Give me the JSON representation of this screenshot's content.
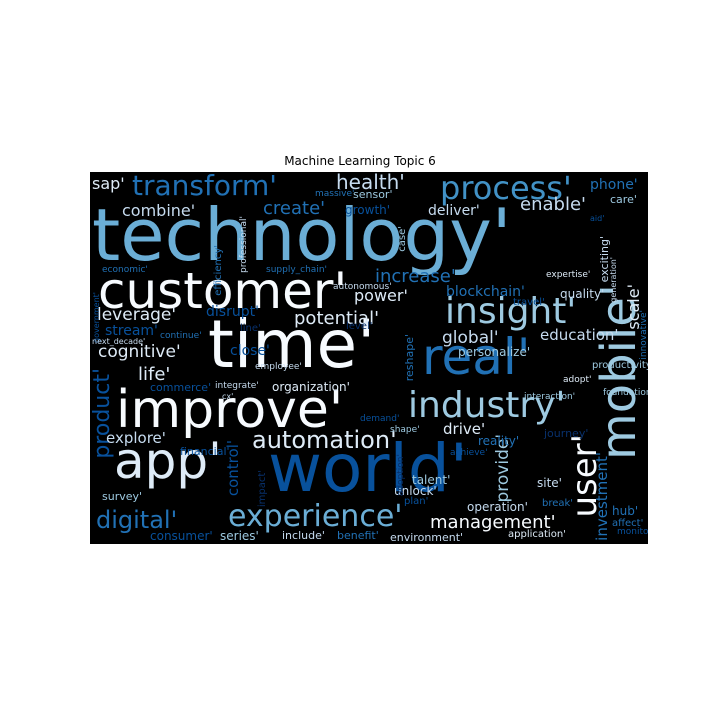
{
  "figure": {
    "title": "Machine Learning Topic 6"
  },
  "wordcloud": {
    "background": "#000000",
    "palette": [
      "#08306b",
      "#08519c",
      "#2171b5",
      "#4292c6",
      "#6baed6",
      "#9ecae1",
      "#c6dbef",
      "#deebf7",
      "#f7fbff"
    ],
    "words": [
      {
        "id": "technology",
        "text": "technology'",
        "color": "#6baed6"
      },
      {
        "id": "customer",
        "text": "customer'",
        "color": "#f7fbff"
      },
      {
        "id": "time",
        "text": "time'",
        "color": "#f7fbff"
      },
      {
        "id": "improve",
        "text": "improve'",
        "color": "#f7fbff"
      },
      {
        "id": "world",
        "text": "world'",
        "color": "#08519c"
      },
      {
        "id": "app",
        "text": "app'",
        "color": "#deebf7"
      },
      {
        "id": "real",
        "text": "real'",
        "color": "#2171b5"
      },
      {
        "id": "mobile",
        "text": "mobile'",
        "color": "#9ecae1"
      },
      {
        "id": "insight",
        "text": "insight'",
        "color": "#9ecae1"
      },
      {
        "id": "industry",
        "text": "industry'",
        "color": "#9ecae1"
      },
      {
        "id": "process",
        "text": "process'",
        "color": "#4292c6"
      },
      {
        "id": "transform",
        "text": "transform'",
        "color": "#2171b5"
      },
      {
        "id": "experience",
        "text": "experience'",
        "color": "#6baed6"
      },
      {
        "id": "digital",
        "text": "digital'",
        "color": "#2171b5"
      },
      {
        "id": "automation",
        "text": "automation'",
        "color": "#deebf7"
      },
      {
        "id": "user",
        "text": "user'",
        "color": "#f7fbff"
      },
      {
        "id": "health",
        "text": "health'",
        "color": "#c6dbef"
      },
      {
        "id": "sap",
        "text": "sap'",
        "color": "#deebf7"
      },
      {
        "id": "combine",
        "text": "combine'",
        "color": "#c6dbef"
      },
      {
        "id": "create",
        "text": "create'",
        "color": "#2171b5"
      },
      {
        "id": "growth",
        "text": "growth'",
        "color": "#08519c"
      },
      {
        "id": "deliver",
        "text": "deliver'",
        "color": "#c6dbef"
      },
      {
        "id": "enable",
        "text": "enable'",
        "color": "#c6dbef"
      },
      {
        "id": "phone",
        "text": "phone'",
        "color": "#2171b5"
      },
      {
        "id": "care",
        "text": "care'",
        "color": "#9ecae1"
      },
      {
        "id": "scale",
        "text": "scale'",
        "color": "#deebf7"
      },
      {
        "id": "increase",
        "text": "increase'",
        "color": "#2171b5"
      },
      {
        "id": "power",
        "text": "power'",
        "color": "#deebf7"
      },
      {
        "id": "blockchain",
        "text": "blockchain'",
        "color": "#2171b5"
      },
      {
        "id": "quality",
        "text": "quality'",
        "color": "#c6dbef"
      },
      {
        "id": "leverage",
        "text": "leverage'",
        "color": "#deebf7"
      },
      {
        "id": "potential",
        "text": "potential'",
        "color": "#deebf7"
      },
      {
        "id": "disrupt",
        "text": "disrupt'",
        "color": "#08519c"
      },
      {
        "id": "global",
        "text": "global'",
        "color": "#c6dbef"
      },
      {
        "id": "education",
        "text": "education'",
        "color": "#c6dbef"
      },
      {
        "id": "cognitive",
        "text": "cognitive'",
        "color": "#deebf7"
      },
      {
        "id": "stream",
        "text": "stream'",
        "color": "#08519c"
      },
      {
        "id": "life",
        "text": "life'",
        "color": "#deebf7"
      },
      {
        "id": "close",
        "text": "close'",
        "color": "#08519c"
      },
      {
        "id": "product",
        "text": "product'",
        "color": "#08519c"
      },
      {
        "id": "commerce",
        "text": "commerce'",
        "color": "#08519c"
      },
      {
        "id": "integrate",
        "text": "integrate'",
        "color": "#c6dbef"
      },
      {
        "id": "organization",
        "text": "organization'",
        "color": "#deebf7"
      },
      {
        "id": "personalize",
        "text": "personalize'",
        "color": "#9ecae1"
      },
      {
        "id": "productivity",
        "text": "productivity'",
        "color": "#9ecae1"
      },
      {
        "id": "explore",
        "text": "explore'",
        "color": "#c6dbef"
      },
      {
        "id": "drive",
        "text": "drive'",
        "color": "#deebf7"
      },
      {
        "id": "financial",
        "text": "financial'",
        "color": "#08519c"
      },
      {
        "id": "provide",
        "text": "provide'",
        "color": "#9ecae1"
      },
      {
        "id": "unlock",
        "text": "unlock'",
        "color": "#c6dbef"
      },
      {
        "id": "talent",
        "text": "talent'",
        "color": "#9ecae1"
      },
      {
        "id": "operation",
        "text": "operation'",
        "color": "#c6dbef"
      },
      {
        "id": "site",
        "text": "site'",
        "color": "#c6dbef"
      },
      {
        "id": "investment",
        "text": "investment'",
        "color": "#2171b5"
      },
      {
        "id": "management",
        "text": "management'",
        "color": "#f7fbff"
      },
      {
        "id": "survey",
        "text": "survey'",
        "color": "#9ecae1"
      },
      {
        "id": "consumer",
        "text": "consumer'",
        "color": "#08519c"
      },
      {
        "id": "series",
        "text": "series'",
        "color": "#9ecae1"
      },
      {
        "id": "include",
        "text": "include'",
        "color": "#c6dbef"
      },
      {
        "id": "benefit",
        "text": "benefit'",
        "color": "#2171b5"
      },
      {
        "id": "environment",
        "text": "environment'",
        "color": "#c6dbef"
      },
      {
        "id": "application",
        "text": "application'",
        "color": "#deebf7"
      },
      {
        "id": "hub",
        "text": "hub'",
        "color": "#2171b5"
      },
      {
        "id": "affect",
        "text": "affect'",
        "color": "#2171b5"
      },
      {
        "id": "monitor",
        "text": "monitor'",
        "color": "#08519c"
      },
      {
        "id": "control",
        "text": "control'",
        "color": "#08519c"
      },
      {
        "id": "impact",
        "text": "impact'",
        "color": "#08306b"
      },
      {
        "id": "reshape",
        "text": "reshape'",
        "color": "#2171b5"
      },
      {
        "id": "shape",
        "text": "shape'",
        "color": "#9ecae1"
      },
      {
        "id": "reality",
        "text": "reality'",
        "color": "#2171b5"
      },
      {
        "id": "achieve",
        "text": "achieve'",
        "color": "#08519c"
      },
      {
        "id": "interaction",
        "text": "interaction'",
        "color": "#9ecae1"
      },
      {
        "id": "adopt",
        "text": "adopt'",
        "color": "#deebf7"
      },
      {
        "id": "foundation",
        "text": "foundation'",
        "color": "#9ecae1"
      },
      {
        "id": "innovative",
        "text": "innovative'",
        "color": "#2171b5"
      },
      {
        "id": "exciting",
        "text": "exciting'",
        "color": "#c6dbef"
      },
      {
        "id": "generation",
        "text": "generation'",
        "color": "#c6dbef"
      },
      {
        "id": "expertise",
        "text": "expertise'",
        "color": "#deebf7"
      },
      {
        "id": "travel",
        "text": "travel'",
        "color": "#08519c"
      },
      {
        "id": "case",
        "text": "case'",
        "color": "#9ecae1"
      },
      {
        "id": "sensor",
        "text": "sensor'",
        "color": "#9ecae1"
      },
      {
        "id": "massive",
        "text": "massive'",
        "color": "#2171b5"
      },
      {
        "id": "autonomous",
        "text": "autonomous'",
        "color": "#c6dbef"
      },
      {
        "id": "professional",
        "text": "professional'",
        "color": "#c6dbef"
      },
      {
        "id": "efficiency",
        "text": "efficiency'",
        "color": "#2171b5"
      },
      {
        "id": "economic",
        "text": "economic'",
        "color": "#2171b5"
      },
      {
        "id": "supply-chain",
        "text": "supply_chain'",
        "color": "#2171b5"
      },
      {
        "id": "government",
        "text": "government'",
        "color": "#08519c"
      },
      {
        "id": "next-decade",
        "text": "next_decade'",
        "color": "#c6dbef"
      },
      {
        "id": "continue",
        "text": "continue'",
        "color": "#2171b5"
      },
      {
        "id": "employee",
        "text": "employee'",
        "color": "#c6dbef"
      },
      {
        "id": "line",
        "text": "line'",
        "color": "#08306b"
      },
      {
        "id": "level",
        "text": "level'",
        "color": "#08306b"
      },
      {
        "id": "cx",
        "text": "cx'",
        "color": "#c6dbef"
      },
      {
        "id": "demand",
        "text": "demand'",
        "color": "#08519c"
      },
      {
        "id": "journey",
        "text": "journey'",
        "color": "#08306b"
      },
      {
        "id": "adoption",
        "text": "adoption'",
        "color": "#08306b"
      },
      {
        "id": "plan",
        "text": "plan'",
        "color": "#08519c"
      },
      {
        "id": "break",
        "text": "break'",
        "color": "#2171b5"
      },
      {
        "id": "aid",
        "text": "aid'",
        "color": "#08519c"
      }
    ]
  }
}
